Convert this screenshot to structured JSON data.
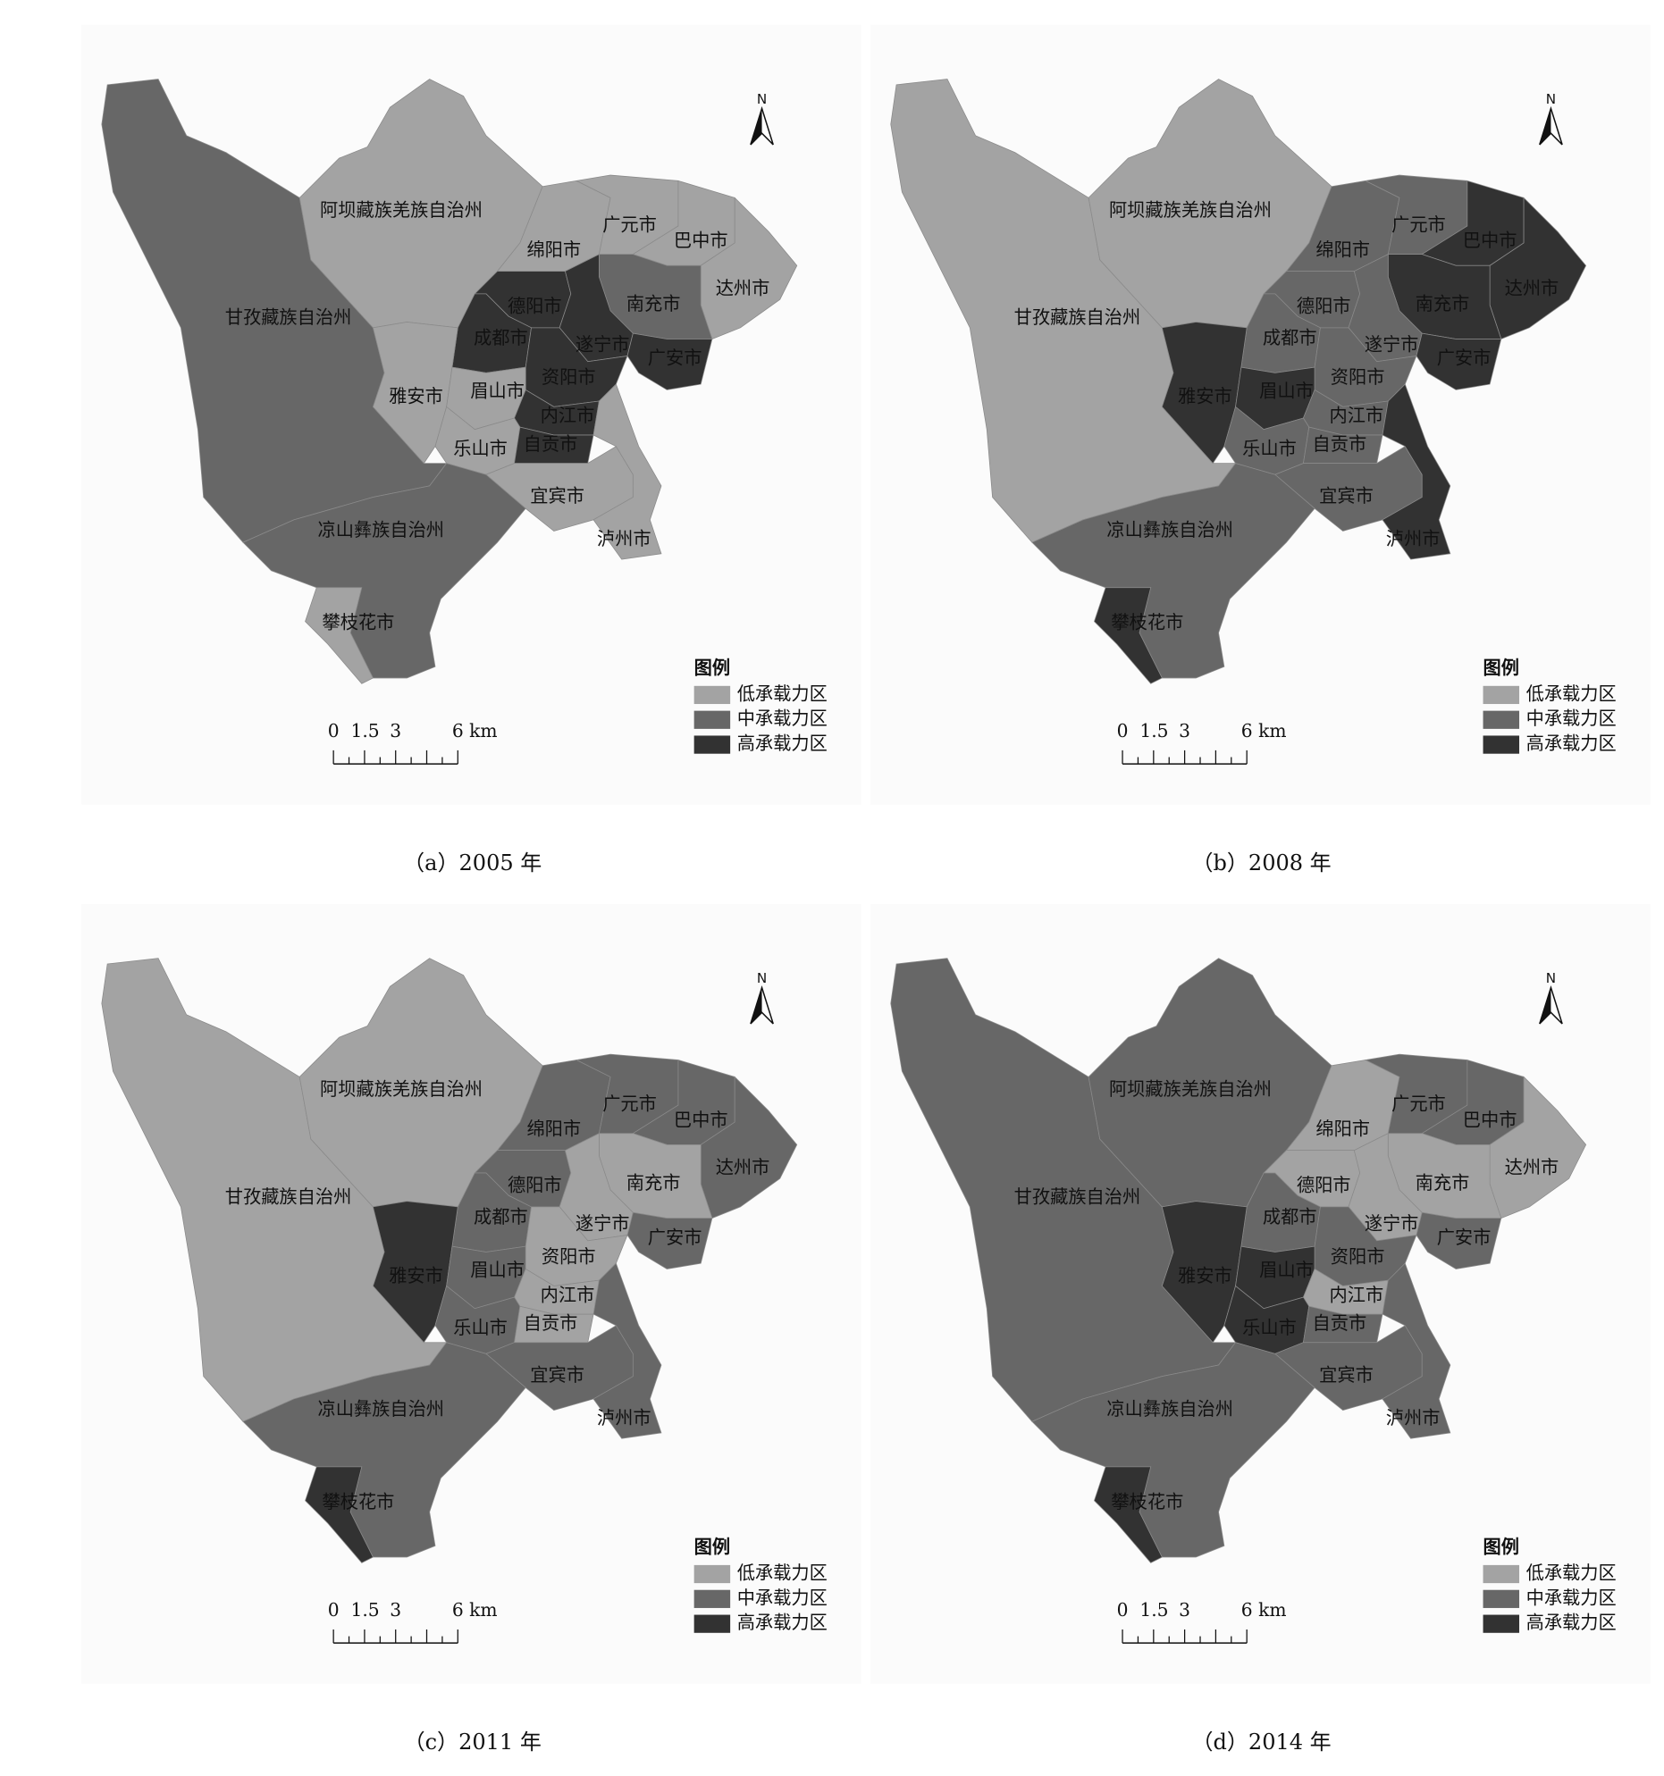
{
  "panels": [
    {
      "caption": "（a）2005 年",
      "north": "N",
      "legend": {
        "title": "图例",
        "items": [
          {
            "label": "低承载力区",
            "color": "#a3a3a3"
          },
          {
            "label": "中承载力区",
            "color": "#676767"
          },
          {
            "label": "高承载力区",
            "color": "#323232"
          }
        ]
      },
      "scale": [
        "0",
        "1.5",
        "3",
        "6 km"
      ],
      "regions": [
        {
          "label": "甘孜藏族自治州",
          "color": "#676767"
        },
        {
          "label": "阿坝藏族羌族自治州",
          "color": "#a3a3a3"
        },
        {
          "label": "绵阳市",
          "color": "#a3a3a3"
        },
        {
          "label": "广元市",
          "color": "#a3a3a3"
        },
        {
          "label": "巴中市",
          "color": "#a3a3a3"
        },
        {
          "label": "达州市",
          "color": "#a3a3a3"
        },
        {
          "label": "南充市",
          "color": "#676767"
        },
        {
          "label": "德阳市",
          "color": "#323232"
        },
        {
          "label": "成都市",
          "color": "#323232"
        },
        {
          "label": "遂宁市",
          "color": "#323232"
        },
        {
          "label": "广安市",
          "color": "#323232"
        },
        {
          "label": "资阳市",
          "color": "#323232"
        },
        {
          "label": "雅安市",
          "color": "#a3a3a3"
        },
        {
          "label": "眉山市",
          "color": "#a3a3a3"
        },
        {
          "label": "内江市",
          "color": "#323232"
        },
        {
          "label": "乐山市",
          "color": "#a3a3a3"
        },
        {
          "label": "自贡市",
          "color": "#323232"
        },
        {
          "label": "宜宾市",
          "color": "#a3a3a3"
        },
        {
          "label": "泸州市",
          "color": "#a3a3a3"
        },
        {
          "label": "凉山彝族自治州",
          "color": "#676767"
        },
        {
          "label": "攀枝花市",
          "color": "#a3a3a3"
        }
      ]
    },
    {
      "caption": "（b）2008 年",
      "north": "N",
      "legend": {
        "title": "图例",
        "items": [
          {
            "label": "低承载力区",
            "color": "#a3a3a3"
          },
          {
            "label": "中承载力区",
            "color": "#676767"
          },
          {
            "label": "高承载力区",
            "color": "#323232"
          }
        ]
      },
      "scale": [
        "0",
        "1.5",
        "3",
        "6 km"
      ],
      "regions": [
        {
          "label": "甘孜藏族自治州",
          "color": "#a3a3a3"
        },
        {
          "label": "阿坝藏族羌族自治州",
          "color": "#a3a3a3"
        },
        {
          "label": "绵阳市",
          "color": "#676767"
        },
        {
          "label": "广元市",
          "color": "#676767"
        },
        {
          "label": "巴中市",
          "color": "#323232"
        },
        {
          "label": "达州市",
          "color": "#323232"
        },
        {
          "label": "南充市",
          "color": "#323232"
        },
        {
          "label": "德阳市",
          "color": "#676767"
        },
        {
          "label": "成都市",
          "color": "#676767"
        },
        {
          "label": "遂宁市",
          "color": "#676767"
        },
        {
          "label": "广安市",
          "color": "#323232"
        },
        {
          "label": "资阳市",
          "color": "#676767"
        },
        {
          "label": "雅安市",
          "color": "#323232"
        },
        {
          "label": "眉山市",
          "color": "#323232"
        },
        {
          "label": "内江市",
          "color": "#676767"
        },
        {
          "label": "乐山市",
          "color": "#676767"
        },
        {
          "label": "自贡市",
          "color": "#676767"
        },
        {
          "label": "宜宾市",
          "color": "#676767"
        },
        {
          "label": "泸州市",
          "color": "#323232"
        },
        {
          "label": "凉山彝族自治州",
          "color": "#676767"
        },
        {
          "label": "攀枝花市",
          "color": "#323232"
        }
      ]
    },
    {
      "caption": "（c）2011 年",
      "north": "N",
      "legend": {
        "title": "图例",
        "items": [
          {
            "label": "低承载力区",
            "color": "#a3a3a3"
          },
          {
            "label": "中承载力区",
            "color": "#676767"
          },
          {
            "label": "高承载力区",
            "color": "#323232"
          }
        ]
      },
      "scale": [
        "0",
        "1.5",
        "3",
        "6 km"
      ],
      "regions": [
        {
          "label": "甘孜藏族自治州",
          "color": "#a3a3a3"
        },
        {
          "label": "阿坝藏族羌族自治州",
          "color": "#a3a3a3"
        },
        {
          "label": "绵阳市",
          "color": "#676767"
        },
        {
          "label": "广元市",
          "color": "#676767"
        },
        {
          "label": "巴中市",
          "color": "#676767"
        },
        {
          "label": "达州市",
          "color": "#676767"
        },
        {
          "label": "南充市",
          "color": "#a3a3a3"
        },
        {
          "label": "德阳市",
          "color": "#676767"
        },
        {
          "label": "成都市",
          "color": "#676767"
        },
        {
          "label": "遂宁市",
          "color": "#a3a3a3"
        },
        {
          "label": "广安市",
          "color": "#676767"
        },
        {
          "label": "资阳市",
          "color": "#a3a3a3"
        },
        {
          "label": "雅安市",
          "color": "#323232"
        },
        {
          "label": "眉山市",
          "color": "#676767"
        },
        {
          "label": "内江市",
          "color": "#a3a3a3"
        },
        {
          "label": "乐山市",
          "color": "#676767"
        },
        {
          "label": "自贡市",
          "color": "#a3a3a3"
        },
        {
          "label": "宜宾市",
          "color": "#676767"
        },
        {
          "label": "泸州市",
          "color": "#676767"
        },
        {
          "label": "凉山彝族自治州",
          "color": "#676767"
        },
        {
          "label": "攀枝花市",
          "color": "#323232"
        }
      ]
    },
    {
      "caption": "（d）2014 年",
      "north": "N",
      "legend": {
        "title": "图例",
        "items": [
          {
            "label": "低承载力区",
            "color": "#a3a3a3"
          },
          {
            "label": "中承载力区",
            "color": "#676767"
          },
          {
            "label": "高承载力区",
            "color": "#323232"
          }
        ]
      },
      "scale": [
        "0",
        "1.5",
        "3",
        "6 km"
      ],
      "regions": [
        {
          "label": "甘孜藏族自治州",
          "color": "#676767"
        },
        {
          "label": "阿坝藏族羌族自治州",
          "color": "#676767"
        },
        {
          "label": "绵阳市",
          "color": "#a3a3a3"
        },
        {
          "label": "广元市",
          "color": "#676767"
        },
        {
          "label": "巴中市",
          "color": "#676767"
        },
        {
          "label": "达州市",
          "color": "#a3a3a3"
        },
        {
          "label": "南充市",
          "color": "#a3a3a3"
        },
        {
          "label": "德阳市",
          "color": "#a3a3a3"
        },
        {
          "label": "成都市",
          "color": "#676767"
        },
        {
          "label": "遂宁市",
          "color": "#a3a3a3"
        },
        {
          "label": "广安市",
          "color": "#676767"
        },
        {
          "label": "资阳市",
          "color": "#676767"
        },
        {
          "label": "雅安市",
          "color": "#323232"
        },
        {
          "label": "眉山市",
          "color": "#323232"
        },
        {
          "label": "内江市",
          "color": "#a3a3a3"
        },
        {
          "label": "乐山市",
          "color": "#323232"
        },
        {
          "label": "自贡市",
          "color": "#676767"
        },
        {
          "label": "宜宾市",
          "color": "#676767"
        },
        {
          "label": "泸州市",
          "color": "#676767"
        },
        {
          "label": "凉山彝族自治州",
          "color": "#676767"
        },
        {
          "label": "攀枝花市",
          "color": "#323232"
        }
      ]
    }
  ]
}
